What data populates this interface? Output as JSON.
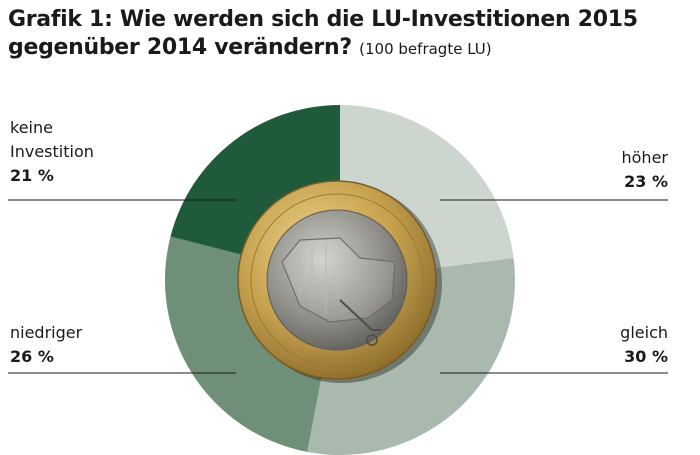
{
  "title": "Grafik 1: Wie werden sich die LU-Investitionen 2015 gegenüber 2014 verändern?",
  "subtitle": "(100 befragte LU)",
  "chart_data": {
    "type": "pie",
    "title": "Grafik 1: Wie werden sich die LU-Investitionen 2015 gegenüber 2014 verändern?",
    "subtitle": "(100 befragte LU)",
    "unit": "%",
    "legend": "none",
    "slices": [
      {
        "label": "höher",
        "value": 23,
        "display": "23 %",
        "color": "#ccd6cf"
      },
      {
        "label": "gleich",
        "value": 30,
        "display": "30 %",
        "color": "#a9b9ad"
      },
      {
        "label": "niedriger",
        "value": 26,
        "display": "26 %",
        "color": "#6f8f78"
      },
      {
        "label": "keine Investition",
        "value": 21,
        "display": "21 %",
        "color": "#1f5a3a"
      }
    ]
  },
  "coin": {
    "icon": "euro-coin-icon",
    "ring_color": "#c7a24f",
    "center_color": "#8d8c87"
  }
}
